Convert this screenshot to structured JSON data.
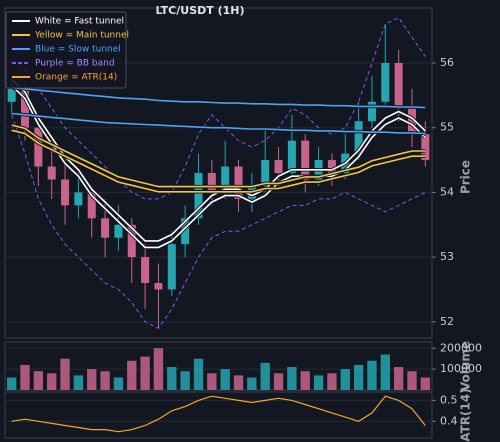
{
  "chart_data": [
    {
      "type": "candlestick",
      "title": "LTC/USDT (1H)",
      "ylabel": "Price",
      "ylim": [
        51.75,
        56.85
      ],
      "yticks": [
        52,
        53,
        54,
        55,
        56
      ],
      "grid": true,
      "up_color": "#26a6b0",
      "down_color": "#c8648c",
      "open": [
        55.4,
        55.6,
        55.0,
        54.4,
        54.2,
        53.8,
        54.0,
        53.6,
        53.3,
        53.5,
        53.0,
        52.6,
        52.5,
        53.2,
        53.6,
        54.3,
        54.0,
        54.4,
        53.9,
        54.1,
        54.5,
        54.3,
        54.8,
        54.2,
        54.5,
        54.3,
        54.6,
        55.1,
        55.4,
        56.0,
        55.3,
        54.9
      ],
      "high": [
        55.8,
        55.7,
        55.2,
        54.8,
        54.5,
        54.3,
        54.1,
        53.9,
        53.8,
        53.6,
        53.2,
        52.9,
        53.4,
        53.8,
        54.6,
        54.5,
        54.8,
        54.5,
        54.3,
        55.0,
        54.7,
        55.2,
        54.9,
        54.7,
        54.6,
        54.9,
        55.4,
        55.8,
        56.6,
        56.2,
        55.6,
        55.1
      ],
      "low": [
        55.2,
        54.8,
        54.1,
        53.9,
        53.5,
        53.6,
        53.3,
        53.0,
        53.1,
        52.6,
        52.2,
        51.9,
        52.4,
        53.0,
        53.5,
        53.8,
        53.9,
        53.7,
        53.7,
        54.0,
        54.1,
        54.2,
        54.0,
        54.1,
        54.1,
        54.2,
        54.5,
        55.0,
        55.3,
        55.1,
        54.7,
        54.4
      ],
      "close": [
        55.6,
        55.0,
        54.4,
        54.2,
        53.8,
        54.0,
        53.6,
        53.3,
        53.5,
        53.0,
        52.6,
        52.5,
        53.2,
        53.6,
        54.3,
        54.0,
        54.4,
        53.9,
        54.1,
        54.5,
        54.3,
        54.8,
        54.2,
        54.5,
        54.3,
        54.6,
        55.1,
        55.4,
        56.0,
        55.3,
        54.9,
        54.5
      ],
      "series": [
        {
          "name": "White = Fast tunnel",
          "color": "#ffffff",
          "style": "solid",
          "upper": [
            55.75,
            55.55,
            55.15,
            54.85,
            54.55,
            54.35,
            54.05,
            53.85,
            53.65,
            53.45,
            53.25,
            53.25,
            53.35,
            53.55,
            53.75,
            53.95,
            54.05,
            54.05,
            53.95,
            54.05,
            54.25,
            54.35,
            54.35,
            54.35,
            54.35,
            54.45,
            54.65,
            54.95,
            55.15,
            55.25,
            55.15,
            54.95
          ],
          "lower": [
            55.65,
            55.45,
            55.05,
            54.75,
            54.45,
            54.25,
            53.95,
            53.75,
            53.55,
            53.35,
            53.15,
            53.15,
            53.25,
            53.45,
            53.65,
            53.85,
            53.95,
            53.95,
            53.85,
            53.95,
            54.15,
            54.25,
            54.25,
            54.25,
            54.25,
            54.35,
            54.55,
            54.85,
            55.05,
            55.15,
            55.05,
            54.85
          ]
        },
        {
          "name": "Yellow = Main tunnel",
          "color": "#f5c542",
          "style": "solid",
          "upper": [
            55.04,
            54.99,
            54.84,
            54.74,
            54.64,
            54.54,
            54.44,
            54.34,
            54.24,
            54.19,
            54.14,
            54.09,
            54.09,
            54.09,
            54.09,
            54.09,
            54.09,
            54.09,
            54.09,
            54.14,
            54.14,
            54.19,
            54.24,
            54.24,
            54.29,
            54.34,
            54.39,
            54.49,
            54.54,
            54.59,
            54.64,
            54.64
          ],
          "lower": [
            54.96,
            54.91,
            54.76,
            54.66,
            54.56,
            54.46,
            54.36,
            54.26,
            54.16,
            54.11,
            54.06,
            54.01,
            54.01,
            54.01,
            54.01,
            54.01,
            54.01,
            54.01,
            54.01,
            54.06,
            54.06,
            54.11,
            54.16,
            54.16,
            54.21,
            54.26,
            54.31,
            54.41,
            54.46,
            54.51,
            54.56,
            54.56
          ]
        },
        {
          "name": "Blue = Slow tunnel",
          "color": "#4ea3f0",
          "style": "solid",
          "upper": [
            55.62,
            55.6,
            55.58,
            55.56,
            55.54,
            55.52,
            55.5,
            55.48,
            55.46,
            55.45,
            55.44,
            55.42,
            55.41,
            55.4,
            55.4,
            55.39,
            55.38,
            55.38,
            55.37,
            55.37,
            55.36,
            55.36,
            55.35,
            55.35,
            55.34,
            55.34,
            55.33,
            55.33,
            55.33,
            55.32,
            55.32,
            55.31
          ],
          "lower": [
            55.22,
            55.2,
            55.18,
            55.16,
            55.14,
            55.12,
            55.1,
            55.08,
            55.07,
            55.06,
            55.05,
            55.04,
            55.03,
            55.02,
            55.01,
            55.0,
            55.0,
            54.99,
            54.98,
            54.98,
            54.97,
            54.96,
            54.96,
            54.95,
            54.95,
            54.94,
            54.94,
            54.93,
            54.93,
            54.92,
            54.92,
            54.91
          ]
        },
        {
          "name": "Purple = BB band",
          "color": "#7b5cf0",
          "style": "dashed",
          "upper": [
            56.0,
            55.9,
            55.6,
            55.3,
            55.0,
            54.8,
            54.6,
            54.4,
            54.2,
            54.0,
            53.9,
            53.9,
            54.0,
            54.4,
            54.9,
            55.2,
            55.0,
            54.8,
            54.7,
            54.8,
            55.0,
            55.3,
            55.2,
            55.0,
            54.9,
            55.0,
            55.4,
            56.0,
            56.6,
            56.7,
            56.4,
            56.1
          ],
          "lower": [
            55.2,
            54.6,
            53.9,
            53.5,
            53.2,
            53.0,
            52.8,
            52.6,
            52.5,
            52.3,
            52.0,
            51.9,
            52.2,
            52.6,
            53.0,
            53.3,
            53.4,
            53.4,
            53.5,
            53.6,
            53.7,
            53.8,
            53.8,
            53.9,
            53.9,
            54.0,
            53.9,
            53.8,
            53.7,
            53.8,
            53.9,
            54.0
          ]
        }
      ]
    },
    {
      "type": "bar",
      "ylabel": "Volume",
      "ylim": [
        0,
        230000
      ],
      "yticks": [
        100000,
        200000
      ],
      "grid": true,
      "values": [
        60000,
        120000,
        90000,
        80000,
        150000,
        70000,
        100000,
        90000,
        60000,
        140000,
        160000,
        200000,
        110000,
        90000,
        150000,
        80000,
        100000,
        70000,
        60000,
        130000,
        80000,
        110000,
        90000,
        70000,
        80000,
        100000,
        120000,
        140000,
        170000,
        110000,
        90000,
        60000
      ]
    },
    {
      "type": "line",
      "ylabel": "ATR(14)",
      "ylim": [
        0.32,
        0.54
      ],
      "yticks": [
        0.4,
        0.5
      ],
      "grid": true,
      "series": [
        {
          "name": "Orange = ATR(14)",
          "color": "#f5a623",
          "values": [
            0.4,
            0.41,
            0.4,
            0.39,
            0.38,
            0.37,
            0.36,
            0.36,
            0.35,
            0.36,
            0.38,
            0.41,
            0.45,
            0.47,
            0.5,
            0.52,
            0.51,
            0.5,
            0.49,
            0.5,
            0.51,
            0.5,
            0.48,
            0.46,
            0.44,
            0.42,
            0.4,
            0.44,
            0.52,
            0.5,
            0.46,
            0.38
          ]
        }
      ]
    }
  ]
}
